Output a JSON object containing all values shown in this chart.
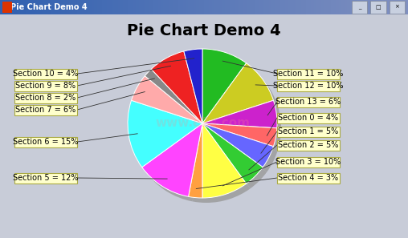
{
  "title": "Pie Chart Demo 4",
  "window_title": "Pie Chart Demo 4",
  "sections": [
    {
      "label": "Section 0",
      "value": 4,
      "color": "#FF6666"
    },
    {
      "label": "Section 1",
      "value": 5,
      "color": "#6666FF"
    },
    {
      "label": "Section 2",
      "value": 5,
      "color": "#33CC33"
    },
    {
      "label": "Section 3",
      "value": 10,
      "color": "#FFFF44"
    },
    {
      "label": "Section 4",
      "value": 3,
      "color": "#FFA040"
    },
    {
      "label": "Section 5",
      "value": 12,
      "color": "#FF44FF"
    },
    {
      "label": "Section 6",
      "value": 15,
      "color": "#44FFFF"
    },
    {
      "label": "Section 7",
      "value": 6,
      "color": "#FFAAAA"
    },
    {
      "label": "Section 8",
      "value": 2,
      "color": "#888888"
    },
    {
      "label": "Section 9",
      "value": 8,
      "color": "#EE2222"
    },
    {
      "label": "Section 10",
      "value": 4,
      "color": "#2222CC"
    },
    {
      "label": "Section 11",
      "value": 10,
      "color": "#22BB22"
    },
    {
      "label": "Section 12",
      "value": 10,
      "color": "#CCCC22"
    },
    {
      "label": "Section 13",
      "value": 6,
      "color": "#CC22CC"
    }
  ],
  "background_color": "#E8E8F0",
  "chart_bg": "#FFFFD8",
  "title_fontsize": 14,
  "label_fontsize": 7,
  "label_box_color": "#FFFFCC",
  "label_box_edge": "#AAAA44",
  "shadow_color": "#999999",
  "titlebar_color1": "#3060B0",
  "titlebar_color2": "#8090C0",
  "window_bg": "#C8CCD8"
}
